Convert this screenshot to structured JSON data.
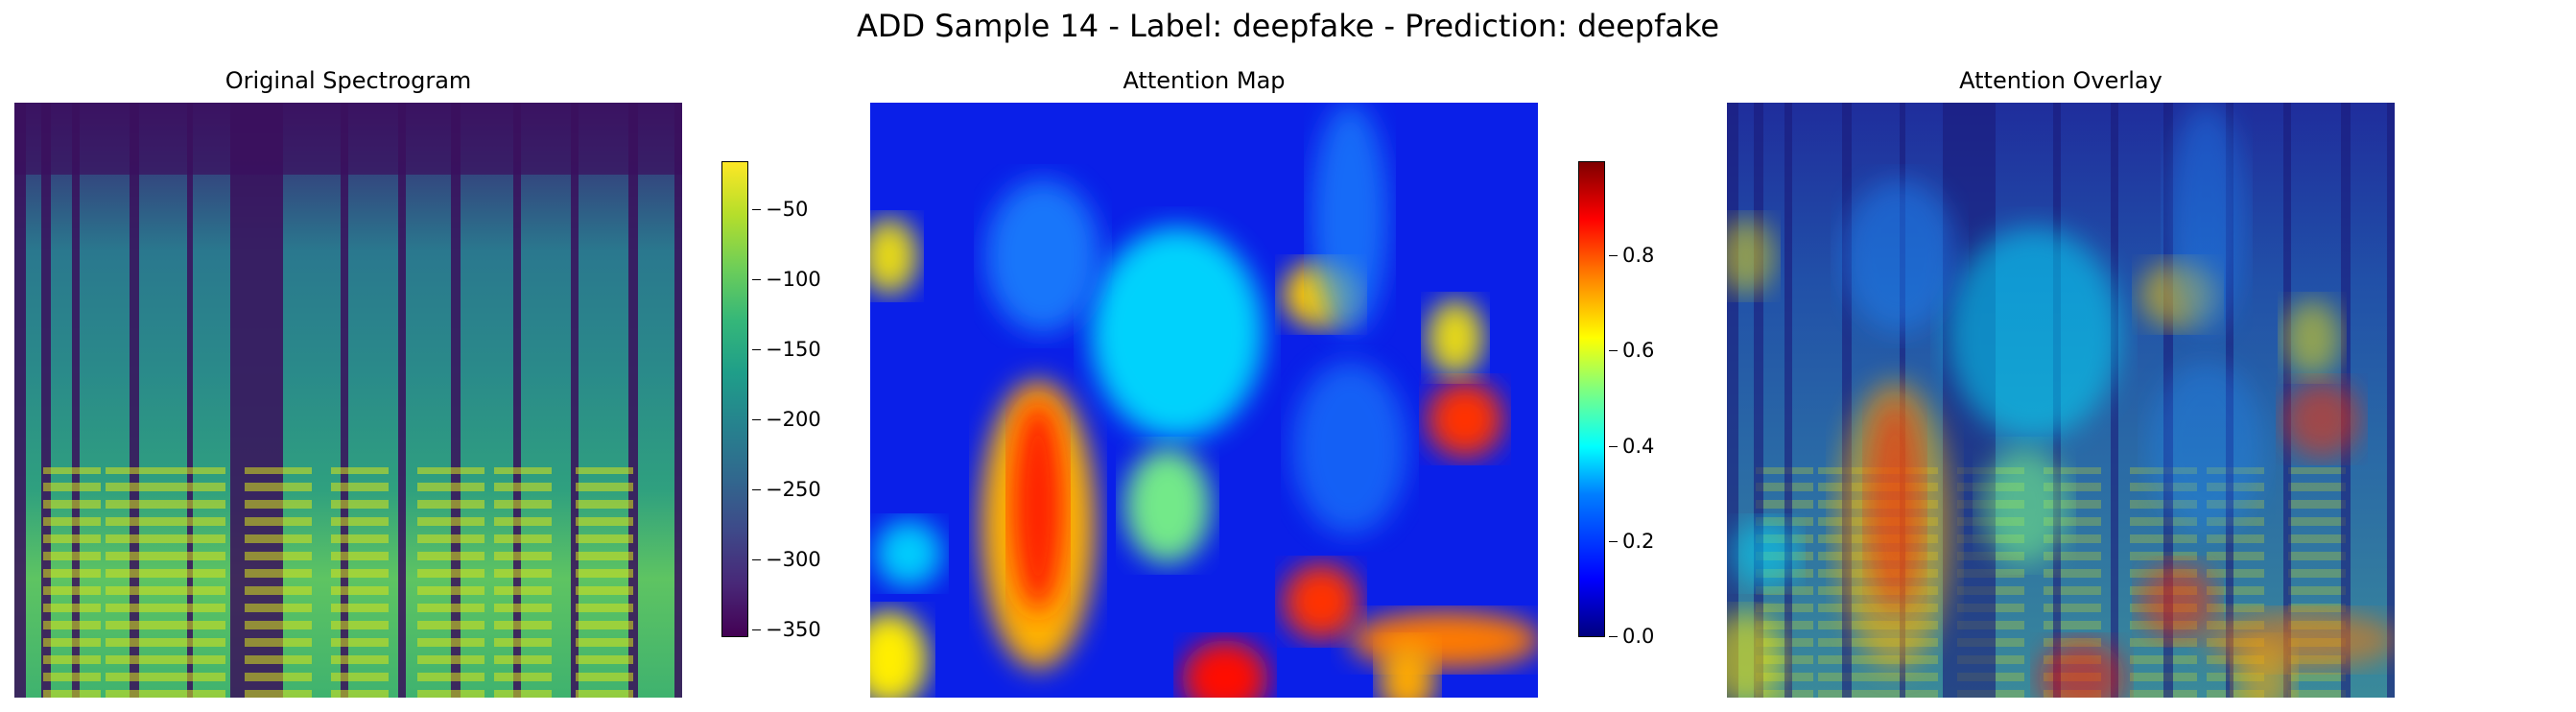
{
  "title": "ADD Sample 14 - Label: deepfake - Prediction: deepfake",
  "chart_data": [
    {
      "type": "heatmap",
      "title": "Original Spectrogram",
      "colormap": "viridis",
      "colorbar": {
        "range": [
          -355,
          -15
        ],
        "ticks": [
          "−50",
          "−100",
          "−150",
          "−200",
          "−250",
          "−300",
          "−350"
        ],
        "tick_values": [
          -50,
          -100,
          -150,
          -200,
          -250,
          -300,
          -350
        ]
      },
      "axes": "off"
    },
    {
      "type": "heatmap",
      "title": "Attention Map",
      "colormap": "jet",
      "colorbar": {
        "range": [
          0,
          1
        ],
        "ticks": [
          "0.0",
          "0.2",
          "0.4",
          "0.6",
          "0.8"
        ],
        "tick_values": [
          0.0,
          0.2,
          0.4,
          0.6,
          0.8
        ]
      },
      "axes": "off"
    },
    {
      "type": "heatmap",
      "title": "Attention Overlay",
      "colormap": "jet over viridis",
      "axes": "off"
    }
  ]
}
